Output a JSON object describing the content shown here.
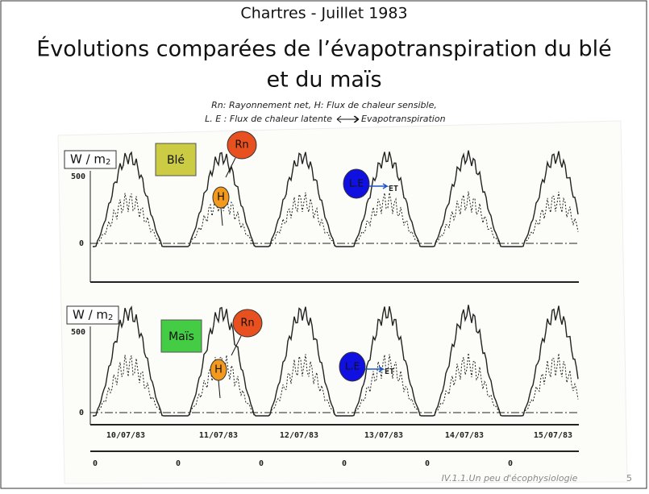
{
  "header": {
    "top": "Chartres - Juillet 1983",
    "title": [
      "Évolutions comparées de l’évapotranspiration du blé",
      "et du maïs"
    ],
    "legend": [
      "Rn: Rayonnement net, H: Flux de chaleur sensible,",
      "L. E : Flux de chaleur latente",
      "Evapotranspiration"
    ]
  },
  "panels": [
    {
      "unit": "W / m",
      "unit_sub": "2",
      "crop": "Blé",
      "rn": "Rn",
      "h": "H",
      "le": "L.E",
      "et": "ET",
      "yticks": [
        "500",
        "0"
      ]
    },
    {
      "unit": "W / m",
      "unit_sub": "2",
      "crop": "Maïs",
      "rn": "Rn",
      "h": "H",
      "le": "L.E",
      "et": "ET",
      "yticks": [
        "500",
        "0"
      ]
    }
  ],
  "dates": [
    "10/07/83",
    "11/07/83",
    "12/07/83",
    "13/07/83",
    "14/07/83",
    "15/07/83"
  ],
  "zeros": [
    "0",
    "0",
    "0",
    "0",
    "0",
    "0"
  ],
  "footer": {
    "section": "IV.1.1.Un peu d'écophysiologie",
    "page": "5"
  }
}
